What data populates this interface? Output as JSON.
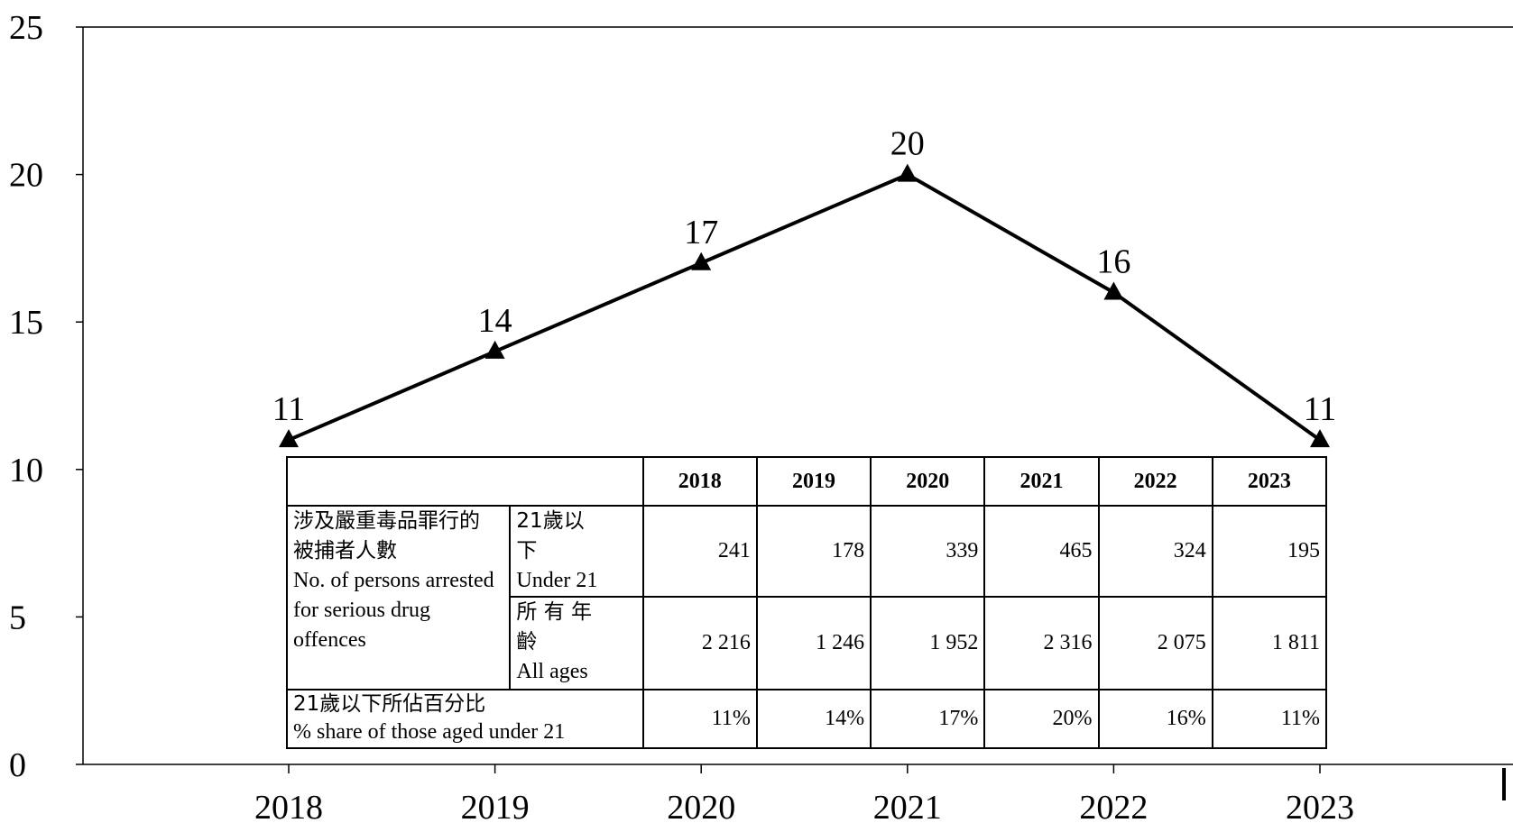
{
  "chart_data": {
    "type": "line",
    "x": [
      "2018",
      "2019",
      "2020",
      "2021",
      "2022",
      "2023"
    ],
    "series": [
      {
        "values": [
          11,
          14,
          17,
          20,
          16,
          11
        ],
        "marker": "triangle",
        "color": "#000000"
      }
    ],
    "data_labels": [
      "11",
      "14",
      "17",
      "20",
      "16",
      "11"
    ],
    "ylim": [
      0,
      25
    ],
    "yticks": [
      0,
      5,
      10,
      15,
      20,
      25
    ],
    "title": "",
    "xlabel": "",
    "ylabel": "",
    "grid": false,
    "legend": "none"
  },
  "table": {
    "headers": [
      "2018",
      "2019",
      "2020",
      "2021",
      "2022",
      "2023"
    ],
    "group_label_zh": "涉及嚴重毒品罪行的被捕者人數",
    "group_label_en": "No. of persons arrested for serious drug offences",
    "rows": [
      {
        "label_zh": "21歲以下",
        "label_en": "Under 21",
        "values": [
          "241",
          "178",
          "339",
          "465",
          "324",
          "195"
        ]
      },
      {
        "label_zh": "所 有 年 齡",
        "label_en": "All ages",
        "values": [
          "2 216",
          "1 246",
          "1 952",
          "2 316",
          "2 075",
          "1 811"
        ]
      }
    ],
    "pct_row": {
      "label_zh": "21歲以下所佔百分比",
      "label_en": "% share of those aged under 21",
      "values": [
        "11%",
        "14%",
        "17%",
        "20%",
        "16%",
        "11%"
      ]
    }
  }
}
